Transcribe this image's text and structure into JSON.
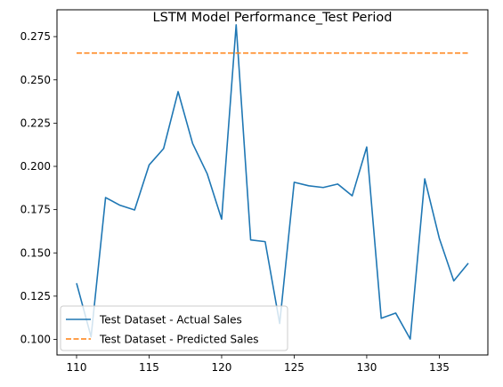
{
  "chart_data": {
    "type": "line",
    "title": "LSTM Model Performance_Test Period",
    "xlabel": "",
    "ylabel": "",
    "xlim": [
      108.65,
      138.35
    ],
    "ylim": [
      0.091,
      0.2905
    ],
    "x_ticks": [
      110,
      115,
      120,
      125,
      130,
      135
    ],
    "y_ticks": [
      0.1,
      0.125,
      0.15,
      0.175,
      0.2,
      0.225,
      0.25,
      0.275
    ],
    "y_tick_labels": [
      "0.100",
      "0.125",
      "0.150",
      "0.175",
      "0.200",
      "0.225",
      "0.250",
      "0.275"
    ],
    "grid": false,
    "legend_position": "lower-left",
    "x": [
      110,
      111,
      112,
      113,
      114,
      115,
      116,
      117,
      118,
      119,
      120,
      121,
      122,
      123,
      124,
      125,
      126,
      127,
      128,
      129,
      130,
      131,
      132,
      133,
      134,
      135,
      136,
      137
    ],
    "series": [
      {
        "name": "Test Dataset - Actual Sales",
        "color": "#1f77b4",
        "style": "solid",
        "values": [
          0.1325,
          0.1015,
          0.182,
          0.1775,
          0.1748,
          0.2008,
          0.2103,
          0.2432,
          0.2132,
          0.1958,
          0.1695,
          0.2818,
          0.1575,
          0.1565,
          0.1092,
          0.1908,
          0.1888,
          0.1878,
          0.1898,
          0.183,
          0.2112,
          0.1122,
          0.1152,
          0.1002,
          0.1928,
          0.1585,
          0.1338,
          0.144
        ]
      },
      {
        "name": "Test Dataset - Predicted Sales",
        "color": "#ff7f0e",
        "style": "dashed",
        "values": [
          0.2655,
          0.2655,
          0.2655,
          0.2655,
          0.2655,
          0.2655,
          0.2655,
          0.2655,
          0.2655,
          0.2655,
          0.2655,
          0.2655,
          0.2655,
          0.2655,
          0.2655,
          0.2655,
          0.2655,
          0.2655,
          0.2655,
          0.2655,
          0.2655,
          0.2655,
          0.2655,
          0.2655,
          0.2655,
          0.2655,
          0.2655,
          0.2655
        ]
      }
    ]
  }
}
